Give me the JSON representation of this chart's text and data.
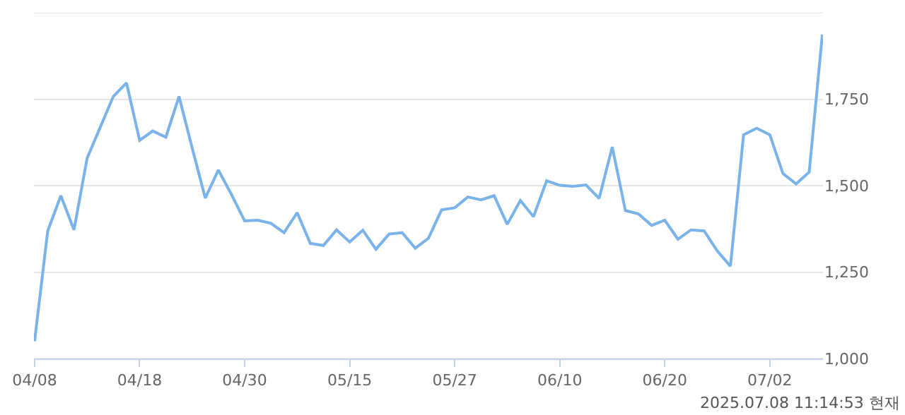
{
  "chart_data": {
    "type": "line",
    "categories": [
      "04/08",
      null,
      null,
      null,
      null,
      null,
      null,
      null,
      "04/18",
      null,
      null,
      null,
      null,
      null,
      null,
      null,
      "04/30",
      null,
      null,
      null,
      null,
      null,
      null,
      null,
      "05/15",
      null,
      null,
      null,
      null,
      null,
      null,
      null,
      "05/27",
      null,
      null,
      null,
      null,
      null,
      null,
      null,
      "06/10",
      null,
      null,
      null,
      null,
      null,
      null,
      null,
      "06/20",
      null,
      null,
      null,
      null,
      null,
      null,
      null,
      "07/02",
      null,
      null,
      null,
      null
    ],
    "series": [
      {
        "color": "#7ab3ea",
        "values": [
          1050,
          1369,
          1471,
          1372,
          1579,
          1669,
          1758,
          1797,
          1631,
          1658,
          1640,
          1758,
          1609,
          1464,
          1545,
          1474,
          1398,
          1400,
          1391,
          1364,
          1422,
          1333,
          1327,
          1372,
          1337,
          1371,
          1316,
          1360,
          1364,
          1319,
          1348,
          1430,
          1436,
          1467,
          1459,
          1471,
          1388,
          1457,
          1410,
          1514,
          1501,
          1498,
          1502,
          1463,
          1612,
          1428,
          1418,
          1385,
          1400,
          1345,
          1372,
          1369,
          1311,
          1267,
          1647,
          1666,
          1647,
          1535,
          1505,
          1539,
          1937
        ]
      }
    ],
    "ylim": [
      1000,
      2000
    ],
    "yticks": [
      {
        "value": 1000,
        "label": "1,000"
      },
      {
        "value": 1250,
        "label": "1,250"
      },
      {
        "value": 1500,
        "label": "1,500"
      },
      {
        "value": 1750,
        "label": "1,750"
      },
      {
        "value": 2000,
        "label": null
      }
    ],
    "grid": "y",
    "legend": false,
    "marker": "none",
    "line_style": "solid",
    "annotations": [
      "2025.07.08 11:14:53 현재"
    ]
  }
}
